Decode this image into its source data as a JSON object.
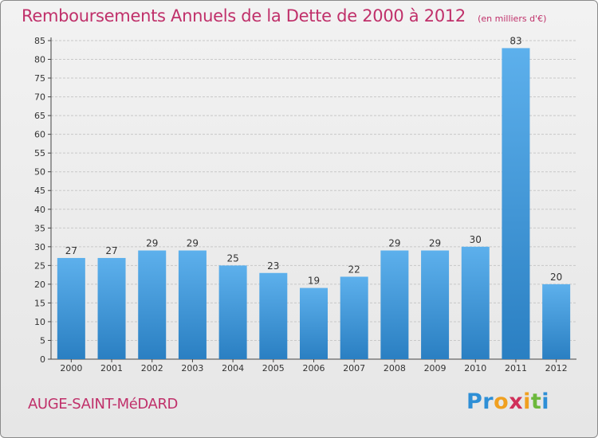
{
  "title": "Remboursements Annuels de la Dette de 2000 à 2012",
  "subtitle": "(en milliers d'€)",
  "commune": "AUGE-SAINT-MéDARD",
  "logo": {
    "text": "Proxiti",
    "letters": [
      {
        "char": "P",
        "color": "#2e8fd6"
      },
      {
        "char": "r",
        "color": "#2e8fd6"
      },
      {
        "char": "o",
        "color": "#f0a020"
      },
      {
        "char": "x",
        "color": "#d0305a"
      },
      {
        "char": "i",
        "color": "#f0a020"
      },
      {
        "char": "t",
        "color": "#6cb83c"
      },
      {
        "char": "i",
        "color": "#2e8fd6"
      }
    ]
  },
  "colors": {
    "accent": "#c0306a",
    "bar_light": "#5db0ec",
    "bar_dark": "#2a7fc2",
    "grid": "#c8c8c8",
    "axis": "#444444"
  },
  "chart_data": {
    "type": "bar",
    "categories": [
      "2000",
      "2001",
      "2002",
      "2003",
      "2004",
      "2005",
      "2006",
      "2007",
      "2008",
      "2009",
      "2010",
      "2011",
      "2012"
    ],
    "values": [
      27,
      27,
      29,
      29,
      25,
      23,
      19,
      22,
      29,
      29,
      30,
      83,
      20
    ],
    "ylim": [
      0,
      85
    ],
    "yticks": [
      0,
      5,
      10,
      15,
      20,
      25,
      30,
      35,
      40,
      45,
      50,
      55,
      60,
      65,
      70,
      75,
      80,
      85
    ],
    "grid": true,
    "data_labels": true
  }
}
